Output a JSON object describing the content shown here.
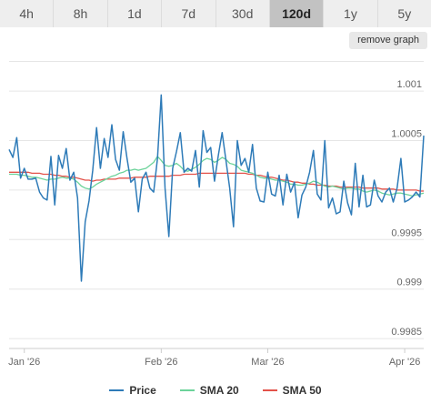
{
  "tabs": [
    {
      "label": "4h",
      "active": false
    },
    {
      "label": "8h",
      "active": false
    },
    {
      "label": "1d",
      "active": false
    },
    {
      "label": "7d",
      "active": false
    },
    {
      "label": "30d",
      "active": false
    },
    {
      "label": "120d",
      "active": true
    },
    {
      "label": "1y",
      "active": false
    },
    {
      "label": "5y",
      "active": false
    }
  ],
  "remove_graph_label": "remove graph",
  "chart_data": {
    "type": "line",
    "title": "",
    "xlabel": "",
    "ylabel": "",
    "x_ticks": [
      "Jan '26",
      "Feb '26",
      "Mar '26",
      "Apr '26"
    ],
    "y_ticks": [
      "1.001",
      "1.0005",
      "0.9995",
      "0.999",
      "0.9985"
    ],
    "y_tick_values": [
      1.001,
      1.0005,
      0.9995,
      0.999,
      0.9985
    ],
    "y_tick_labels_shown": [
      "1.001",
      "1.0005",
      "",
      "0.9995",
      "0.999",
      "0.9985"
    ],
    "ylim": [
      0.9984,
      1.00135
    ],
    "grid": true,
    "legend_position": "bottom",
    "series": [
      {
        "name": "Price",
        "color": "#2e7bb8",
        "values": [
          1.00041,
          1.00033,
          1.00053,
          1.00012,
          1.00022,
          1.00011,
          1.00011,
          1.00012,
          0.99998,
          0.99992,
          0.9999,
          1.00034,
          0.99985,
          1.00035,
          1.00022,
          1.00042,
          1.0001,
          1.00018,
          0.99992,
          0.99908,
          0.99968,
          0.99989,
          1.0002,
          1.00063,
          1.00022,
          1.00052,
          1.00033,
          1.00066,
          1.00031,
          1.0002,
          1.00059,
          1.00032,
          1.00008,
          1.00012,
          0.99978,
          1.00011,
          1.00018,
          1.00002,
          0.99998,
          1.00032,
          1.00096,
          1.00002,
          0.99953,
          1.00022,
          1.00039,
          1.00058,
          1.00018,
          1.00022,
          1.00019,
          1.0004,
          1.00003,
          1.0006,
          1.00038,
          1.00043,
          1.00009,
          1.00035,
          1.00058,
          1.0003,
          1.00002,
          0.99963,
          1.0005,
          1.00025,
          1.00032,
          1.00018,
          1.00046,
          1.00002,
          0.99989,
          0.99988,
          1.00018,
          0.99996,
          0.99994,
          1.00015,
          0.99985,
          1.00016,
          0.99998,
          1.00008,
          0.99972,
          0.99995,
          1.00003,
          1.00018,
          1.0004,
          0.99996,
          0.9999,
          1.0005,
          0.99982,
          0.99992,
          0.99976,
          0.99978,
          1.00009,
          0.99987,
          0.99975,
          1.00027,
          0.99983,
          1.00015,
          0.99983,
          0.99985,
          1.0001,
          0.99994,
          0.99988,
          0.99998,
          1.00002,
          0.99988,
          1.00002,
          1.00032,
          0.99988,
          0.9999,
          0.99993,
          0.99998,
          0.99993,
          1.00055
        ]
      },
      {
        "name": "SMA 20",
        "color": "#6cd39a",
        "values": [
          1.00016,
          1.00016,
          1.00016,
          1.00015,
          1.00015,
          1.00014,
          1.00013,
          1.00013,
          1.00012,
          1.00011,
          1.0001,
          1.00011,
          1.00011,
          1.00012,
          1.00013,
          1.00012,
          1.00012,
          1.00011,
          1.00008,
          1.00004,
          1.00002,
          1.00001,
          1.00003,
          1.00006,
          1.00008,
          1.0001,
          1.00012,
          1.00014,
          1.00015,
          1.00017,
          1.00018,
          1.0002,
          1.0002,
          1.00021,
          1.0002,
          1.00021,
          1.00022,
          1.00025,
          1.00028,
          1.00034,
          1.0003,
          1.00025,
          1.00024,
          1.00025,
          1.00027,
          1.00024,
          1.0002,
          1.00019,
          1.00021,
          1.00023,
          1.00026,
          1.0003,
          1.00032,
          1.00031,
          1.00028,
          1.0003,
          1.00033,
          1.00031,
          1.00027,
          1.00026,
          1.00024,
          1.0002,
          1.00019,
          1.00018,
          1.00017,
          1.00015,
          1.00013,
          1.00012,
          1.00012,
          1.00011,
          1.0001,
          1.0001,
          1.00009,
          1.00008,
          1.00006,
          1.00006,
          1.00005,
          1.00005,
          1.00006,
          1.00007,
          1.00009,
          1.00008,
          1.00006,
          1.00004,
          1.00003,
          1.00004,
          1.00003,
          1.00002,
          1.00001,
          1.00002,
          1.00002,
          1.00001,
          1.00001,
          0.99999,
          0.99998,
          0.99999,
          1.0,
          0.99999,
          0.99997,
          0.99996,
          0.99995,
          0.99996,
          0.99997,
          0.99997,
          0.99996,
          0.99995,
          0.99994,
          0.99995,
          0.99996,
          0.99997
        ]
      },
      {
        "name": "SMA 50",
        "color": "#e3524a",
        "values": [
          1.00018,
          1.00018,
          1.00018,
          1.00018,
          1.00018,
          1.00018,
          1.00017,
          1.00017,
          1.00017,
          1.00016,
          1.00016,
          1.00016,
          1.00015,
          1.00015,
          1.00014,
          1.00014,
          1.00013,
          1.00013,
          1.00012,
          1.00011,
          1.0001,
          1.0001,
          1.00009,
          1.0001,
          1.0001,
          1.00011,
          1.00011,
          1.00011,
          1.00011,
          1.00012,
          1.00012,
          1.00012,
          1.00012,
          1.00013,
          1.00013,
          1.00013,
          1.00013,
          1.00014,
          1.00014,
          1.00014,
          1.00014,
          1.00014,
          1.00014,
          1.00015,
          1.00015,
          1.00015,
          1.00016,
          1.00016,
          1.00016,
          1.00016,
          1.00017,
          1.00017,
          1.00017,
          1.00017,
          1.00017,
          1.00017,
          1.00017,
          1.00017,
          1.00017,
          1.00017,
          1.00017,
          1.00017,
          1.00017,
          1.00016,
          1.00016,
          1.00015,
          1.00015,
          1.00014,
          1.00013,
          1.00013,
          1.00012,
          1.00011,
          1.0001,
          1.0001,
          1.00009,
          1.00008,
          1.00008,
          1.00007,
          1.00007,
          1.00006,
          1.00006,
          1.00005,
          1.00005,
          1.00005,
          1.00004,
          1.00004,
          1.00004,
          1.00003,
          1.00003,
          1.00003,
          1.00003,
          1.00003,
          1.00003,
          1.00002,
          1.00002,
          1.00002,
          1.00002,
          1.00002,
          1.00001,
          1.00001,
          1.00001,
          1.00001,
          1.0,
          1.0,
          1.0,
          1.0,
          1.0,
          1.0,
          0.99999,
          0.99999
        ]
      }
    ]
  }
}
